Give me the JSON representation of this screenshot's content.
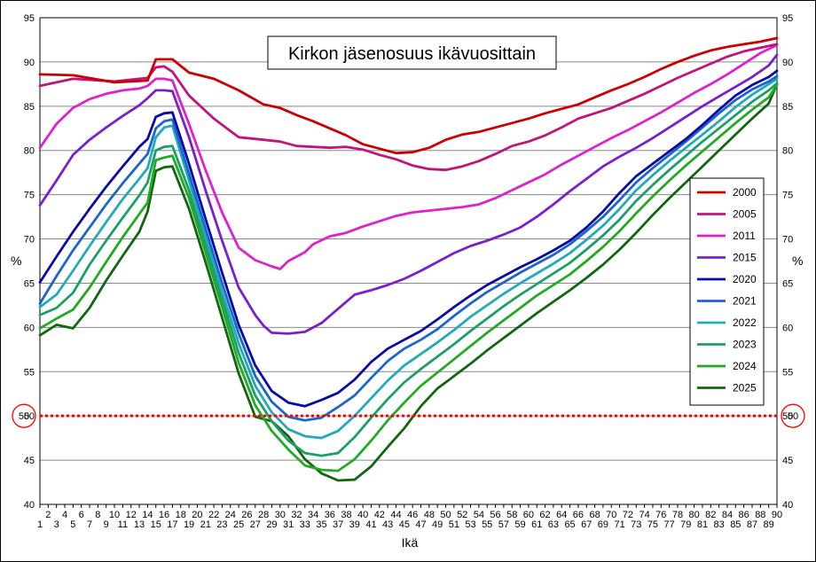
{
  "chart_data": {
    "type": "line",
    "title": "Kirkon jäsenosuus ikävuosittain",
    "xlabel": "Ikä",
    "ylabel_left": "%",
    "ylabel_right": "%",
    "xlim": [
      1,
      90
    ],
    "ylim": [
      40,
      95
    ],
    "y_ticks": [
      40,
      45,
      50,
      55,
      60,
      65,
      70,
      75,
      80,
      85,
      90,
      95
    ],
    "grid": "horizontal",
    "legend_position": "right",
    "reference_line": {
      "value": 50,
      "label": "50",
      "color": "#ff0000",
      "style": "dotted"
    },
    "series": [
      {
        "name": "2000",
        "color": "#cc0000",
        "x": [
          1,
          5,
          10,
          14,
          15,
          16,
          17,
          19,
          22,
          25,
          28,
          30,
          32,
          34,
          36,
          38,
          40,
          42,
          44,
          46,
          48,
          50,
          52,
          54,
          56,
          58,
          60,
          62,
          64,
          66,
          68,
          70,
          72,
          74,
          76,
          78,
          80,
          82,
          84,
          86,
          88,
          90
        ],
        "y": [
          88.6,
          88.5,
          87.7,
          87.9,
          90.3,
          90.3,
          90.3,
          88.8,
          88.1,
          86.8,
          85.2,
          84.8,
          84.0,
          83.3,
          82.5,
          81.7,
          80.7,
          80.2,
          79.7,
          79.8,
          80.3,
          81.2,
          81.8,
          82.1,
          82.6,
          83.1,
          83.6,
          84.2,
          84.7,
          85.2,
          86.0,
          86.8,
          87.5,
          88.3,
          89.2,
          90.0,
          90.7,
          91.3,
          91.7,
          92.0,
          92.3,
          92.7
        ]
      },
      {
        "name": "2005",
        "color": "#c0147a",
        "x": [
          1,
          5,
          10,
          14,
          15,
          16,
          17,
          19,
          22,
          25,
          28,
          30,
          32,
          34,
          36,
          38,
          40,
          42,
          44,
          46,
          48,
          50,
          52,
          54,
          56,
          58,
          60,
          62,
          64,
          66,
          68,
          70,
          72,
          74,
          76,
          78,
          80,
          82,
          84,
          86,
          88,
          90
        ],
        "y": [
          87.3,
          88.1,
          87.8,
          88.2,
          89.4,
          89.5,
          88.9,
          86.2,
          83.6,
          81.5,
          81.2,
          81.0,
          80.5,
          80.4,
          80.3,
          80.4,
          80.1,
          79.5,
          79.0,
          78.3,
          77.9,
          77.8,
          78.2,
          78.8,
          79.6,
          80.5,
          81.0,
          81.7,
          82.6,
          83.6,
          84.2,
          84.8,
          85.6,
          86.4,
          87.3,
          88.2,
          89.0,
          89.8,
          90.6,
          91.2,
          91.6,
          92.0
        ]
      },
      {
        "name": "2011",
        "color": "#dd22cc",
        "x": [
          1,
          3,
          5,
          7,
          9,
          11,
          13,
          14,
          15,
          16,
          17,
          19,
          21,
          23,
          25,
          27,
          29,
          30,
          31,
          33,
          34,
          36,
          38,
          40,
          42,
          44,
          46,
          48,
          50,
          52,
          54,
          56,
          58,
          60,
          62,
          64,
          66,
          68,
          70,
          72,
          74,
          76,
          78,
          80,
          82,
          84,
          86,
          88,
          90
        ],
        "y": [
          80.3,
          83.0,
          84.8,
          85.8,
          86.4,
          86.8,
          87.0,
          87.3,
          88.1,
          88.1,
          87.9,
          83.0,
          77.8,
          73.0,
          69.0,
          67.6,
          66.9,
          66.6,
          67.5,
          68.5,
          69.4,
          70.3,
          70.7,
          71.4,
          72.0,
          72.6,
          73.0,
          73.2,
          73.4,
          73.6,
          73.9,
          74.6,
          75.5,
          76.4,
          77.3,
          78.4,
          79.4,
          80.4,
          81.4,
          82.3,
          83.3,
          84.3,
          85.4,
          86.5,
          87.5,
          88.6,
          89.8,
          91.0,
          91.9
        ]
      },
      {
        "name": "2015",
        "color": "#7a1fcc",
        "x": [
          1,
          3,
          5,
          7,
          9,
          11,
          13,
          14,
          15,
          16,
          17,
          19,
          21,
          23,
          25,
          27,
          28,
          29,
          31,
          33,
          35,
          37,
          39,
          41,
          43,
          45,
          47,
          49,
          51,
          53,
          55,
          57,
          59,
          61,
          63,
          65,
          67,
          69,
          71,
          73,
          75,
          77,
          79,
          81,
          83,
          85,
          87,
          89,
          90
        ],
        "y": [
          73.8,
          76.6,
          79.5,
          81.2,
          82.6,
          83.9,
          85.1,
          85.9,
          86.8,
          86.8,
          86.7,
          81.5,
          75.5,
          69.8,
          64.5,
          61.4,
          60.2,
          59.4,
          59.3,
          59.5,
          60.5,
          62.1,
          63.7,
          64.2,
          64.8,
          65.5,
          66.4,
          67.4,
          68.4,
          69.2,
          69.8,
          70.5,
          71.3,
          72.5,
          73.9,
          75.4,
          76.8,
          78.2,
          79.3,
          80.3,
          81.4,
          82.6,
          83.8,
          85.0,
          86.1,
          87.2,
          88.3,
          89.6,
          90.8
        ]
      },
      {
        "name": "2020",
        "color": "#0a0aaa",
        "x": [
          1,
          3,
          5,
          7,
          9,
          11,
          13,
          14,
          15,
          16,
          17,
          19,
          21,
          23,
          25,
          27,
          29,
          31,
          33,
          35,
          37,
          39,
          41,
          43,
          45,
          47,
          49,
          51,
          53,
          55,
          57,
          59,
          61,
          63,
          65,
          67,
          69,
          71,
          73,
          75,
          77,
          79,
          81,
          83,
          85,
          87,
          89,
          90
        ],
        "y": [
          65.1,
          68.0,
          70.8,
          73.4,
          75.9,
          78.2,
          80.4,
          81.3,
          83.8,
          84.2,
          84.3,
          78.5,
          72.3,
          66.2,
          60.3,
          55.7,
          52.8,
          51.5,
          51.1,
          51.8,
          52.6,
          54.1,
          56.1,
          57.6,
          58.6,
          59.6,
          60.9,
          62.3,
          63.6,
          64.8,
          65.8,
          66.8,
          67.7,
          68.7,
          69.8,
          71.3,
          73.1,
          75.2,
          77.1,
          78.5,
          79.9,
          81.3,
          82.9,
          84.6,
          86.2,
          87.4,
          88.3,
          89.0
        ]
      },
      {
        "name": "2021",
        "color": "#1a66cc",
        "x": [
          1,
          3,
          5,
          7,
          9,
          11,
          13,
          14,
          15,
          16,
          17,
          19,
          21,
          23,
          25,
          27,
          29,
          31,
          33,
          35,
          37,
          39,
          41,
          43,
          45,
          47,
          49,
          51,
          53,
          55,
          57,
          59,
          61,
          63,
          65,
          67,
          69,
          71,
          73,
          75,
          77,
          79,
          81,
          83,
          85,
          87,
          89,
          90
        ],
        "y": [
          62.7,
          65.8,
          68.7,
          71.3,
          73.9,
          76.3,
          78.5,
          79.6,
          82.5,
          83.3,
          83.5,
          77.4,
          71.2,
          65.0,
          59.3,
          54.5,
          51.6,
          49.9,
          49.5,
          49.8,
          51.0,
          52.3,
          54.3,
          56.2,
          57.6,
          58.6,
          59.8,
          61.3,
          62.7,
          64.0,
          65.1,
          66.2,
          67.2,
          68.2,
          69.4,
          70.9,
          72.5,
          74.4,
          76.4,
          78.0,
          79.5,
          81.0,
          82.6,
          84.2,
          85.7,
          86.9,
          87.8,
          88.4
        ]
      },
      {
        "name": "2022",
        "color": "#22aabb",
        "x": [
          1,
          3,
          5,
          7,
          9,
          11,
          13,
          14,
          15,
          16,
          17,
          19,
          21,
          23,
          25,
          27,
          29,
          31,
          33,
          35,
          37,
          39,
          41,
          43,
          45,
          47,
          49,
          51,
          53,
          55,
          57,
          59,
          61,
          63,
          65,
          67,
          69,
          71,
          73,
          75,
          77,
          79,
          81,
          83,
          85,
          87,
          89,
          90
        ],
        "y": [
          62.3,
          63.7,
          66.4,
          69.2,
          71.9,
          74.5,
          76.8,
          78.0,
          81.5,
          82.6,
          82.8,
          76.6,
          70.3,
          64.0,
          58.2,
          53.4,
          50.4,
          48.5,
          47.7,
          47.5,
          48.3,
          50.0,
          52.0,
          54.0,
          55.7,
          57.0,
          58.3,
          59.7,
          61.2,
          62.5,
          63.8,
          65.0,
          66.1,
          67.2,
          68.4,
          69.9,
          71.5,
          73.4,
          75.5,
          77.2,
          78.8,
          80.3,
          81.8,
          83.3,
          84.9,
          86.3,
          87.5,
          88.1
        ]
      },
      {
        "name": "2023",
        "color": "#1aa066",
        "x": [
          1,
          3,
          5,
          7,
          9,
          11,
          13,
          14,
          15,
          16,
          17,
          19,
          21,
          23,
          25,
          27,
          29,
          31,
          33,
          35,
          37,
          39,
          41,
          43,
          45,
          47,
          49,
          51,
          53,
          55,
          57,
          59,
          61,
          63,
          65,
          67,
          69,
          71,
          73,
          75,
          77,
          79,
          81,
          83,
          85,
          87,
          89,
          90
        ],
        "y": [
          61.4,
          62.2,
          63.9,
          67.1,
          69.8,
          72.4,
          74.9,
          76.4,
          80.0,
          80.4,
          80.5,
          75.5,
          69.4,
          63.2,
          57.1,
          52.3,
          49.4,
          47.2,
          45.8,
          45.5,
          45.8,
          47.6,
          49.8,
          51.9,
          53.8,
          55.3,
          56.7,
          58.1,
          59.6,
          61.0,
          62.4,
          63.7,
          64.9,
          66.1,
          67.3,
          68.8,
          70.4,
          72.2,
          74.3,
          76.1,
          77.8,
          79.4,
          81.0,
          82.5,
          84.0,
          85.5,
          86.8,
          87.6
        ]
      },
      {
        "name": "2024",
        "color": "#22aa22",
        "x": [
          1,
          3,
          5,
          7,
          9,
          11,
          13,
          14,
          15,
          16,
          17,
          19,
          21,
          23,
          25,
          27,
          29,
          31,
          33,
          35,
          37,
          39,
          41,
          43,
          45,
          47,
          49,
          51,
          53,
          55,
          57,
          59,
          61,
          63,
          65,
          67,
          69,
          71,
          73,
          75,
          77,
          79,
          81,
          83,
          85,
          87,
          89,
          90
        ],
        "y": [
          59.9,
          61.0,
          62.0,
          64.5,
          67.4,
          70.2,
          72.8,
          74.1,
          78.9,
          79.2,
          79.4,
          74.6,
          68.5,
          62.3,
          56.0,
          51.2,
          48.3,
          46.2,
          44.4,
          43.9,
          43.8,
          45.1,
          47.2,
          49.5,
          51.5,
          53.4,
          54.9,
          56.4,
          57.9,
          59.4,
          60.8,
          62.2,
          63.6,
          64.8,
          66.0,
          67.5,
          69.1,
          70.9,
          72.9,
          74.8,
          76.6,
          78.3,
          79.9,
          81.5,
          83.1,
          84.6,
          86.0,
          87.4
        ]
      },
      {
        "name": "2025",
        "color": "#116611",
        "x": [
          1,
          3,
          5,
          7,
          9,
          11,
          13,
          14,
          15,
          16,
          17,
          19,
          21,
          23,
          25,
          27,
          29,
          31,
          33,
          35,
          37,
          39,
          41,
          43,
          45,
          47,
          49,
          51,
          53,
          55,
          57,
          59,
          61,
          63,
          65,
          67,
          69,
          71,
          73,
          75,
          77,
          79,
          81,
          83,
          85,
          87,
          89,
          90
        ],
        "y": [
          59.1,
          60.3,
          59.9,
          62.2,
          65.3,
          68.1,
          70.8,
          73.1,
          77.7,
          78.1,
          78.2,
          73.4,
          67.4,
          61.1,
          54.8,
          49.9,
          49.4,
          47.7,
          45.1,
          43.5,
          42.7,
          42.8,
          44.3,
          46.5,
          48.6,
          51.1,
          53.1,
          54.5,
          55.9,
          57.4,
          58.8,
          60.2,
          61.6,
          62.9,
          64.2,
          65.6,
          67.1,
          68.8,
          70.7,
          72.7,
          74.6,
          76.4,
          78.2,
          80.0,
          81.8,
          83.6,
          85.3,
          87.5
        ]
      }
    ]
  }
}
